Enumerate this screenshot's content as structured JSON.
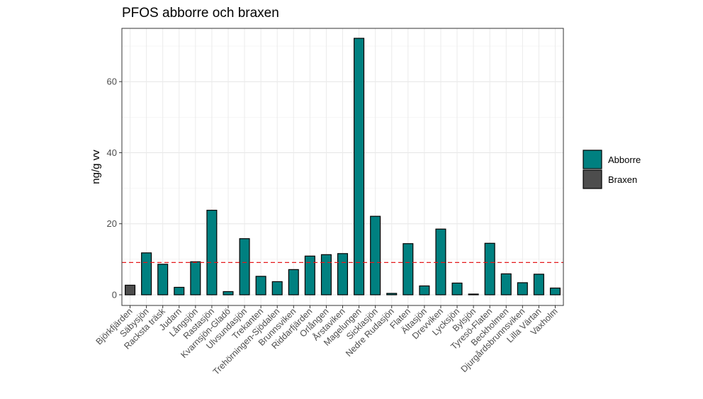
{
  "chart_data": {
    "type": "bar",
    "title": "PFOS abborre och braxen",
    "xlabel": "",
    "ylabel": "ng/g vv",
    "ylim": [
      -3,
      75
    ],
    "yticks": [
      0,
      20,
      40,
      60
    ],
    "grid": true,
    "legend_position": "right",
    "reference_line": {
      "value": 9.1,
      "style": "dashed",
      "color": "#e41a1c"
    },
    "categories": [
      "Björkfjärden",
      "Säbysjön",
      "Racksta träsk",
      "Judarn",
      "Långsjön",
      "Rastasjön",
      "Kvarnsjön-Gladö",
      "Ulvsundasjön",
      "Trekanten",
      "Trehörningen-Sjödalen",
      "Brunnsviken",
      "Riddarfjärden",
      "Orlången",
      "Årstaviken",
      "Magelungen",
      "Sicklasjön",
      "Nedre Rudasjön",
      "Flaten",
      "Ältasjön",
      "Drevviken",
      "Lycksjön",
      "Bylsjön",
      "Tyresö-Flaten",
      "Beckholmen",
      "Djurgårdsbrunnsviken",
      "Lilla Värtan",
      "Vaxholm"
    ],
    "values": [
      2.7,
      11.8,
      8.6,
      2.1,
      9.3,
      23.8,
      0.9,
      15.8,
      5.2,
      3.7,
      7.1,
      10.9,
      11.3,
      11.6,
      72.2,
      22.1,
      0.4,
      14.4,
      2.5,
      18.5,
      3.3,
      0.2,
      14.5,
      5.9,
      3.4,
      5.8,
      1.9
    ],
    "groups": [
      "Braxen",
      "Abborre",
      "Abborre",
      "Abborre",
      "Abborre",
      "Abborre",
      "Abborre",
      "Abborre",
      "Abborre",
      "Abborre",
      "Abborre",
      "Abborre",
      "Abborre",
      "Abborre",
      "Abborre",
      "Abborre",
      "Abborre",
      "Abborre",
      "Abborre",
      "Abborre",
      "Abborre",
      "Abborre",
      "Abborre",
      "Abborre",
      "Abborre",
      "Abborre",
      "Abborre"
    ],
    "legend": [
      {
        "name": "Abborre",
        "color": "#008080"
      },
      {
        "name": "Braxen",
        "color": "#4d4d4d"
      }
    ]
  }
}
